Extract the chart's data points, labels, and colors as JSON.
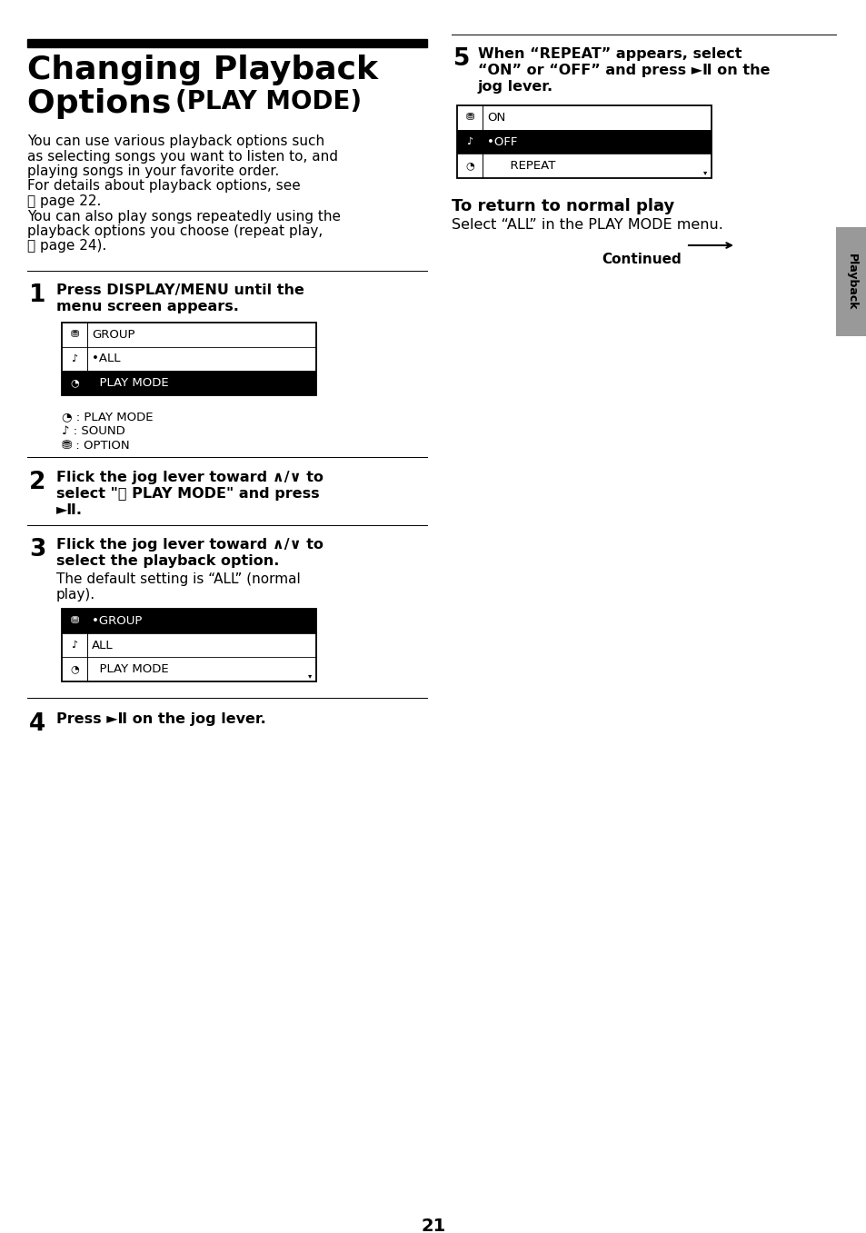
{
  "page_num": "21",
  "bg_color": "#ffffff",
  "title_line1": "Changing Playback",
  "title_line2_a": "Options ",
  "title_line2_b": "(PLAY MODE)",
  "intro_lines": [
    "You can use various playback options such",
    "as selecting songs you want to listen to, and",
    "playing songs in your favorite order.",
    "For details about playback options, see",
    "☉ page 22.",
    "You can also play songs repeatedly using the",
    "playback options you choose (repeat play,",
    "☉ page 24)."
  ],
  "step1_text_a": "Press DISPLAY/MENU until the",
  "step1_text_b": "menu screen appears.",
  "step2_text_a": "Flick the jog lever toward ∧/∨ to",
  "step2_text_b": "select \"Ⓣ PLAY MODE\" and press",
  "step2_text_c": "►Ⅱ.",
  "step3_text_a": "Flick the jog lever toward ∧/∨ to",
  "step3_text_b": "select the playback option.",
  "step3_sub_a": "The default setting is “ALL” (normal",
  "step3_sub_b": "play).",
  "step4_text": "Press ►Ⅱ on the jog lever.",
  "step5_text_a": "When “REPEAT” appears, select",
  "step5_text_b": "“ON” or “OFF” and press ►Ⅱ on the",
  "step5_text_c": "jog lever.",
  "return_title": "To return to normal play",
  "return_text": "Select “ALL” in the PLAY MODE menu.",
  "continued_text": "Continued",
  "playback_tab": "Playback",
  "sidebar_color": "#aaaaaa",
  "black": "#000000",
  "white": "#ffffff"
}
